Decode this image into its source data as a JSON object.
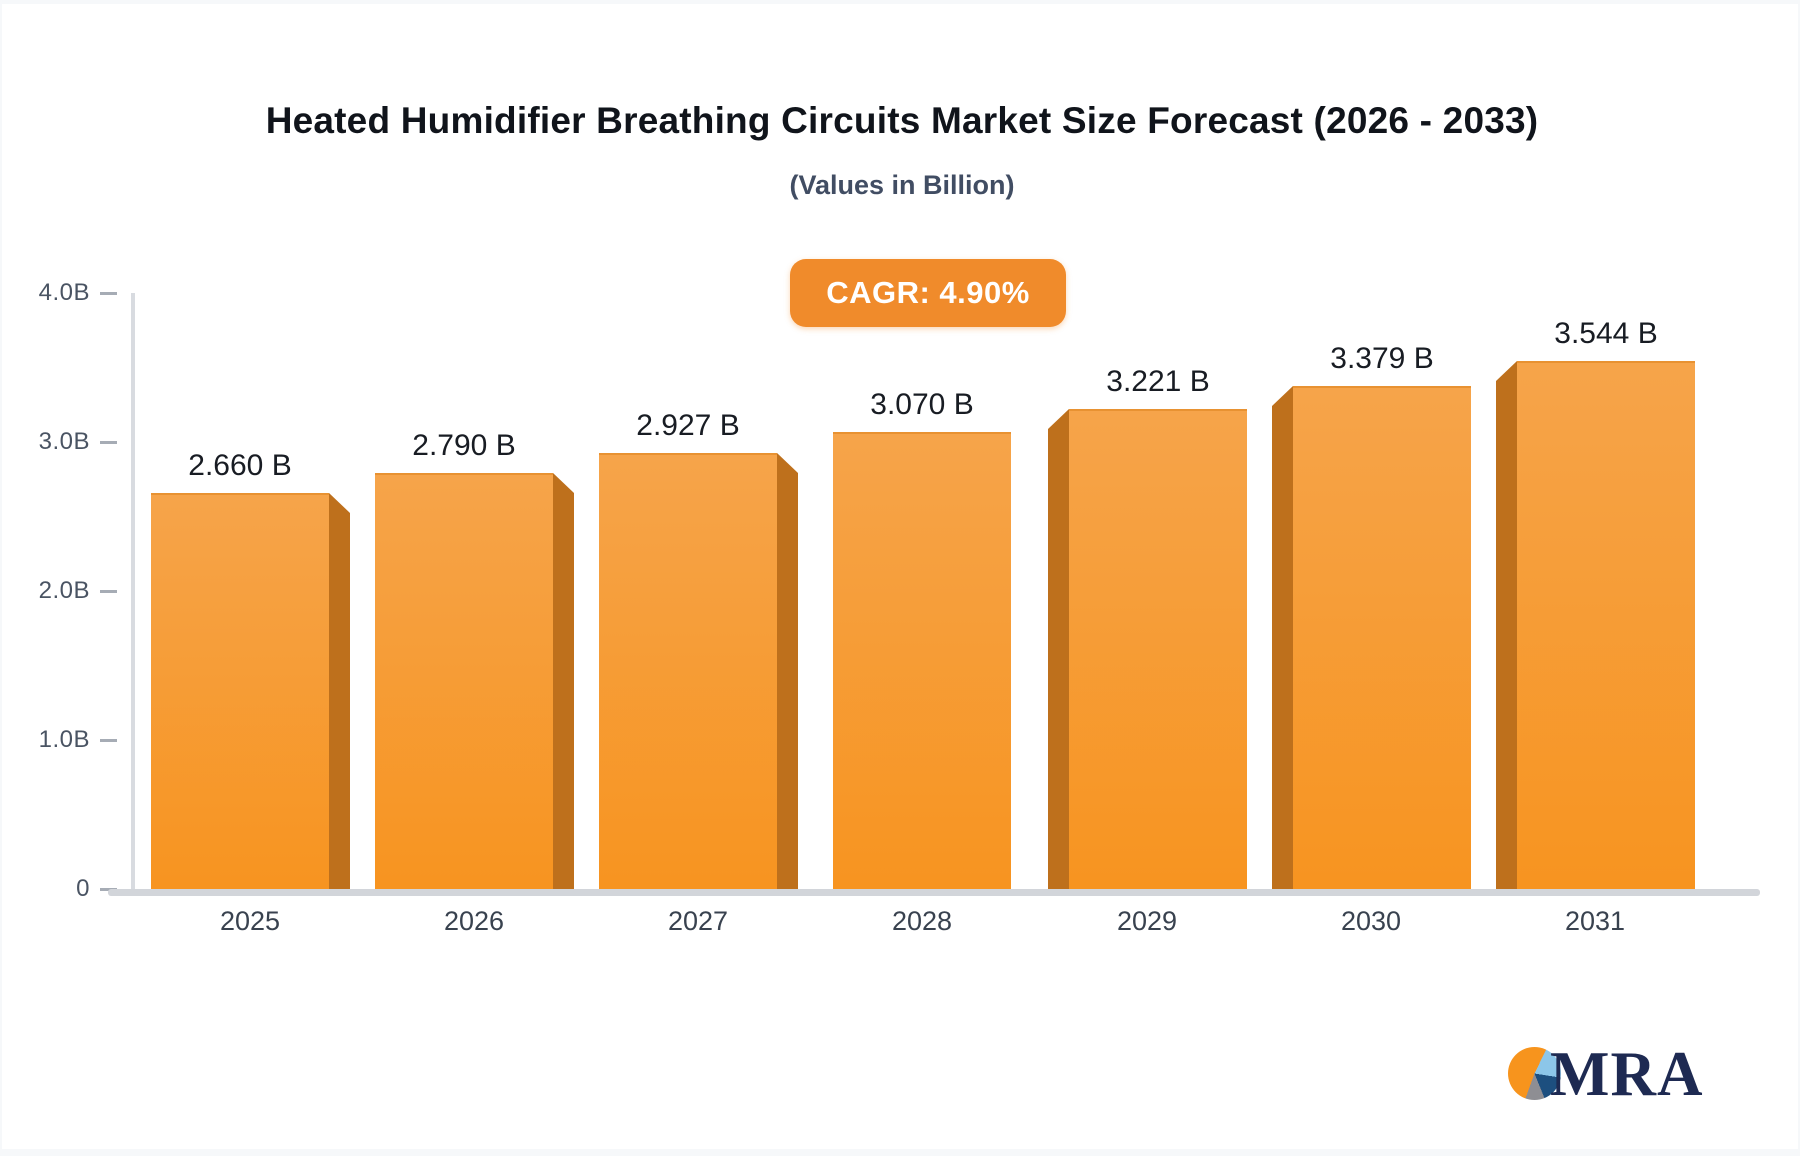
{
  "header": {
    "title": "Heated Humidifier Breathing Circuits Market Size Forecast (2026 - 2033)",
    "subtitle": "(Values in Billion)",
    "cagr_badge": "CAGR: 4.90%"
  },
  "chart_data": {
    "type": "bar",
    "title": "Heated Humidifier Breathing Circuits Market Size Forecast (2026 - 2033)",
    "subtitle": "(Values in Billion)",
    "cagr": "4.90%",
    "categories": [
      "2025",
      "2026",
      "2027",
      "2028",
      "2029",
      "2030",
      "2031"
    ],
    "values": [
      2.66,
      2.79,
      2.927,
      3.07,
      3.221,
      3.379,
      3.544
    ],
    "value_labels": [
      "2.660 B",
      "2.790 B",
      "2.927 B",
      "3.070 B",
      "3.221 B",
      "3.379 B",
      "3.544 B"
    ],
    "unit": "Billion",
    "ylim": [
      0,
      4.0
    ],
    "y_ticks": [
      {
        "label": "0",
        "value": 0.0
      },
      {
        "label": "1.0B",
        "value": 1.0
      },
      {
        "label": "2.0B",
        "value": 2.0
      },
      {
        "label": "3.0B",
        "value": 3.0
      },
      {
        "label": "4.0B",
        "value": 4.0
      }
    ],
    "grid": false,
    "legend": "none",
    "colors": {
      "bar_face_top": "#F6A44A",
      "bar_face_bottom": "#F79420",
      "bar_side": "#BE701C",
      "badge_background": "#F08B2B",
      "badge_text": "#FFFFFF",
      "axis": "#D8DBE0",
      "tick_text": "#4A5463"
    }
  },
  "branding": {
    "logo_text": "MRA",
    "logo_pie_colors": [
      "#F7941D",
      "#8CC6E9",
      "#1D4F7F",
      "#8E8E93"
    ]
  }
}
